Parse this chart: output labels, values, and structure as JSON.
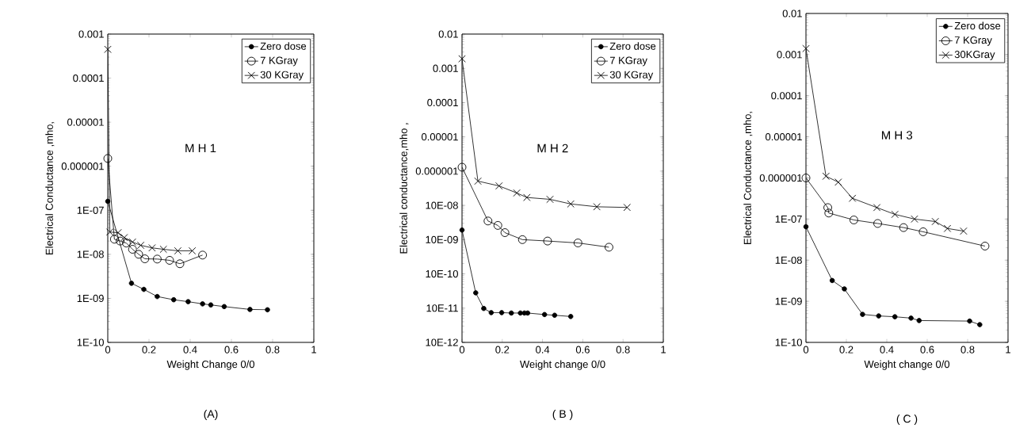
{
  "chart_data": [
    {
      "type": "line",
      "xlabel": "Weight Change 0/0",
      "ylabel": "Electrical Conductance ,mho,",
      "log": "y",
      "legend": "top right",
      "xlim": [
        0,
        1
      ],
      "ylim": [
        1e-10,
        0.001
      ],
      "xticks": [
        0,
        0.2,
        0.4,
        0.6,
        0.8,
        1
      ],
      "yticks": [
        {
          "value": 1e-10,
          "label": "1E-10"
        },
        {
          "value": 1e-09,
          "label": "1E-09"
        },
        {
          "value": 1e-08,
          "label": "1E-08"
        },
        {
          "value": 1e-07,
          "label": "1E-07"
        },
        {
          "value": 1e-06,
          "label": "0.000001"
        },
        {
          "value": 1e-05,
          "label": "0.00001"
        },
        0.0001,
        0.001
      ],
      "annotations": [
        "M H 1",
        "(A)"
      ],
      "series": [
        {
          "name": "Zero dose",
          "color": "#000000",
          "marker": "circle",
          "x": [
            0,
            0.115,
            0.175,
            0.24,
            0.32,
            0.39,
            0.46,
            0.5,
            0.565,
            0.69,
            0.775
          ],
          "values": [
            1.6e-07,
            2.2e-09,
            1.6e-09,
            1.1e-09,
            9.3e-10,
            8.4e-10,
            7.5e-10,
            7.1e-10,
            6.5e-10,
            5.6e-10,
            5.5e-10
          ]
        },
        {
          "name": "7 KGray",
          "color": "#000000",
          "marker": "circle",
          "x": [
            0,
            0.032,
            0.06,
            0.09,
            0.12,
            0.15,
            0.18,
            0.24,
            0.3,
            0.35,
            0.46
          ],
          "values": [
            1.5e-06,
            2.2e-08,
            2e-08,
            1.8e-08,
            1.3e-08,
            1e-08,
            7.9e-09,
            7.8e-09,
            7.3e-09,
            6.1e-09,
            9.6e-09
          ]
        },
        {
          "name": "30 KGray",
          "color": "#000000",
          "marker": "cross",
          "x": [
            0,
            0.01,
            0.05,
            0.08,
            0.12,
            0.16,
            0.215,
            0.27,
            0.34,
            0.41
          ],
          "values": [
            0.00045,
            3.2e-08,
            3.1e-08,
            2.4e-08,
            1.9e-08,
            1.6e-08,
            1.4e-08,
            1.3e-08,
            1.2e-08,
            1.2e-08
          ]
        }
      ]
    },
    {
      "type": "line",
      "xlabel": "Weight change 0/0",
      "ylabel": "Electrical conductance,mho ,",
      "log": "y",
      "legend": "top right",
      "xlim": [
        0,
        1
      ],
      "ylim": [
        1e-11,
        0.01
      ],
      "xticks": [
        0,
        0.2,
        0.4,
        0.6,
        0.8,
        1
      ],
      "yticks": [
        {
          "value": 1e-11,
          "label": "10E-12"
        },
        {
          "value": 1e-10,
          "label": "10E-11"
        },
        {
          "value": 1e-09,
          "label": "10E-10"
        },
        {
          "value": 1e-08,
          "label": "10E-09"
        },
        {
          "value": 1e-07,
          "label": "10E-08"
        },
        {
          "value": 1e-06,
          "label": "0.000001"
        },
        {
          "value": 1e-05,
          "label": "0.00001"
        },
        0.0001,
        0.001,
        0.01
      ],
      "annotations": [
        "M H 2",
        "( B )"
      ],
      "series": [
        {
          "name": "Zero dose",
          "color": "#000000",
          "marker": "circle",
          "x": [
            0,
            0.068,
            0.108,
            0.145,
            0.197,
            0.245,
            0.29,
            0.31,
            0.326,
            0.41,
            0.46,
            0.54
          ],
          "values": [
            1.9e-08,
            2.8e-10,
            9.8e-11,
            7.4e-11,
            7.4e-11,
            7.2e-11,
            7.2e-11,
            7.2e-11,
            7.2e-11,
            6.5e-11,
            6.2e-11,
            5.7e-11
          ]
        },
        {
          "name": "7 KGray",
          "color": "#000000",
          "marker": "circle",
          "x": [
            0,
            0.129,
            0.178,
            0.213,
            0.3,
            0.425,
            0.576,
            0.73
          ],
          "values": [
            1.3e-06,
            3.5e-08,
            2.6e-08,
            1.6e-08,
            1e-08,
            9.1e-09,
            8e-09,
            6e-09
          ]
        },
        {
          "name": "30 KGray",
          "color": "#000000",
          "marker": "cross",
          "x": [
            0,
            0.079,
            0.184,
            0.272,
            0.322,
            0.437,
            0.54,
            0.67,
            0.82
          ],
          "values": [
            0.0019,
            5.1e-07,
            3.7e-07,
            2.3e-07,
            1.7e-07,
            1.5e-07,
            1.1e-07,
            9.1e-08,
            8.7e-08
          ]
        }
      ]
    },
    {
      "type": "line",
      "xlabel": "Weight change 0/0",
      "ylabel": "Electrical Conductance ,mho,",
      "log": "y",
      "legend": "top right",
      "xlim": [
        0,
        1
      ],
      "ylim": [
        1e-10,
        0.01
      ],
      "xticks": [
        0,
        0.2,
        0.4,
        0.6,
        0.8,
        1
      ],
      "yticks": [
        {
          "value": 1e-10,
          "label": "1E-10"
        },
        {
          "value": 1e-09,
          "label": "1E-09"
        },
        {
          "value": 1e-08,
          "label": "1E-08"
        },
        {
          "value": 1e-07,
          "label": "1E-07"
        },
        {
          "value": 1e-06,
          "label": "0.000001"
        },
        {
          "value": 1e-05,
          "label": "0.00001"
        },
        0.0001,
        0.001,
        0.01
      ],
      "annotations": [
        "M H 3",
        "( C )"
      ],
      "series": [
        {
          "name": "Zero dose",
          "color": "#000000",
          "marker": "circle",
          "x": [
            0,
            0.13,
            0.19,
            0.28,
            0.36,
            0.44,
            0.52,
            0.56,
            0.81,
            0.86
          ],
          "values": [
            6.5e-08,
            3.2e-09,
            2e-09,
            4.8e-10,
            4.4e-10,
            4.2e-10,
            3.9e-10,
            3.4e-10,
            3.3e-10,
            2.7e-10
          ]
        },
        {
          "name": "7 KGray",
          "color": "#000000",
          "marker": "circle",
          "x": [
            0,
            0.108,
            0.113,
            0.237,
            0.355,
            0.483,
            0.58,
            0.886
          ],
          "values": [
            1e-06,
            1.9e-07,
            1.4e-07,
            9.5e-08,
            7.8e-08,
            6.2e-08,
            4.9e-08,
            2.2e-08
          ]
        },
        {
          "name": "30KGray",
          "color": "#000000",
          "marker": "cross",
          "x": [
            0,
            0.099,
            0.16,
            0.23,
            0.351,
            0.44,
            0.537,
            0.64,
            0.7,
            0.78
          ],
          "values": [
            0.0014,
            1.1e-06,
            7.9e-07,
            3.2e-07,
            1.9e-07,
            1.3e-07,
            1e-07,
            8.7e-08,
            5.9e-08,
            5.1e-08
          ]
        }
      ]
    }
  ]
}
